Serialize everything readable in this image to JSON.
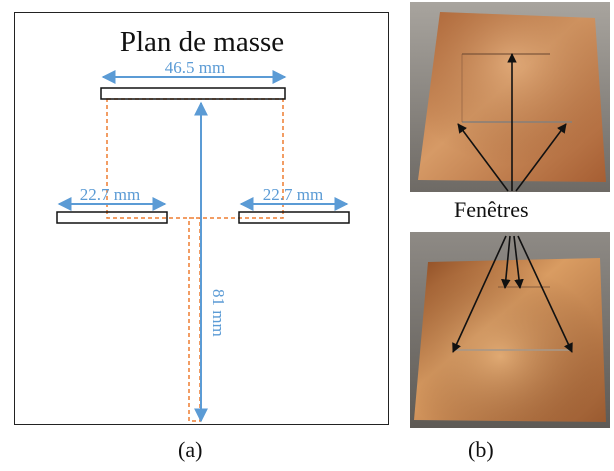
{
  "panel_a": {
    "title": "Plan de masse",
    "dim_top": "46.5 mm",
    "dim_left": "22.7 mm",
    "dim_right": "22.7 mm",
    "dim_vertical": "81 mm",
    "caption": "(a)"
  },
  "panel_b": {
    "label": "Fenêtres",
    "caption": "(b)"
  },
  "colors": {
    "dimension": "#5b9bd5",
    "dashed_outline": "#ed7d31",
    "copper": "#c17a45",
    "outline": "#111111"
  }
}
